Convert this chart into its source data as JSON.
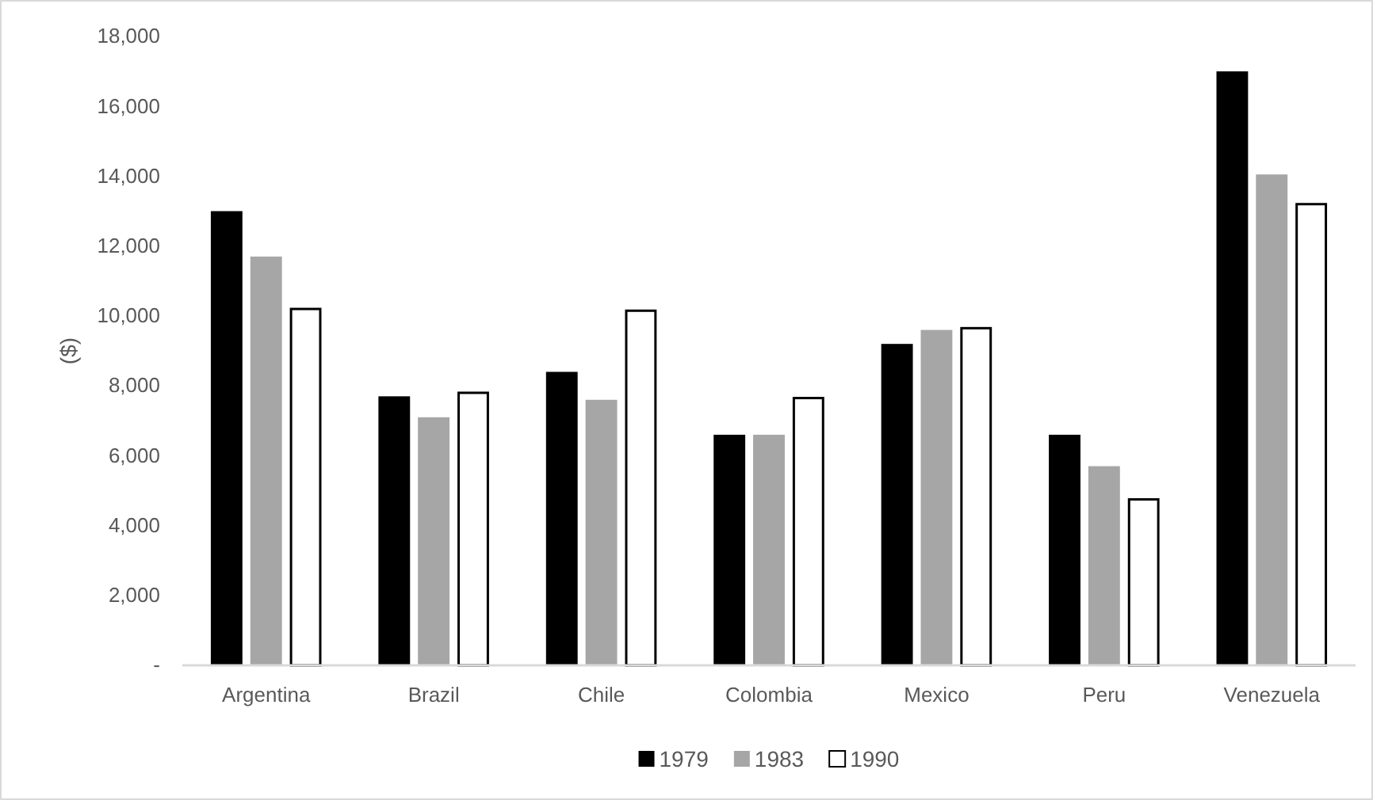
{
  "chart_data": {
    "type": "bar",
    "ylabel": "($)",
    "categories": [
      "Argentina",
      "Brazil",
      "Chile",
      "Colombia",
      "Mexico",
      "Peru",
      "Venezuela"
    ],
    "series": [
      {
        "name": "1979",
        "color": "#000000",
        "values": [
          13000,
          7700,
          8400,
          6600,
          9200,
          6600,
          17000
        ]
      },
      {
        "name": "1983",
        "color": "#a6a6a6",
        "values": [
          11700,
          7100,
          7600,
          6600,
          9600,
          5700,
          14050
        ]
      },
      {
        "name": "1990",
        "color": "#ffffff",
        "values": [
          10200,
          7800,
          10150,
          7650,
          9650,
          4750,
          13200
        ]
      }
    ],
    "ylim": [
      0,
      18000
    ],
    "yticks": [
      {
        "value": 0,
        "label": "-"
      },
      {
        "value": 2000,
        "label": "2,000"
      },
      {
        "value": 4000,
        "label": "4,000"
      },
      {
        "value": 6000,
        "label": "6,000"
      },
      {
        "value": 8000,
        "label": "8,000"
      },
      {
        "value": 10000,
        "label": "10,000"
      },
      {
        "value": 12000,
        "label": "12,000"
      },
      {
        "value": 14000,
        "label": "14,000"
      },
      {
        "value": 16000,
        "label": "16,000"
      },
      {
        "value": 18000,
        "label": "18,000"
      }
    ],
    "grid": false,
    "legend": "bottom"
  }
}
